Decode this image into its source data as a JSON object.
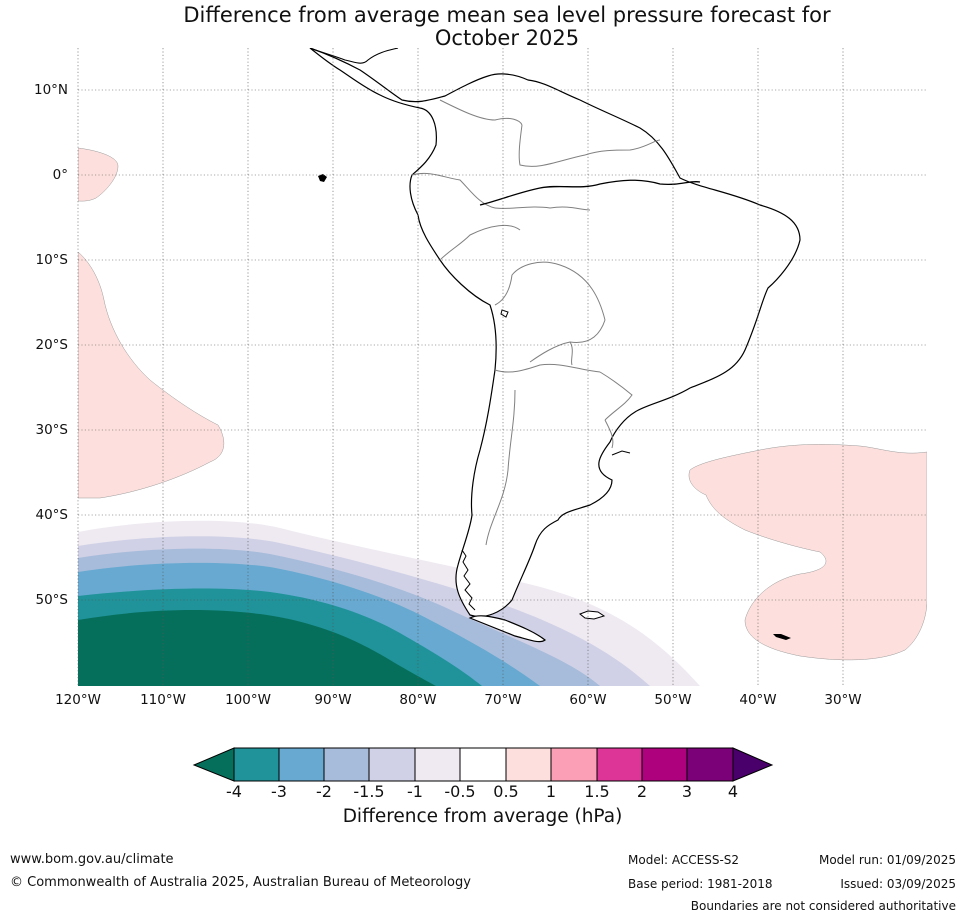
{
  "title": "Difference from average mean sea level pressure forecast for October 2025",
  "title_lines": [
    "Difference from average mean sea level pressure forecast for",
    "October 2025"
  ],
  "map": {
    "lat_labels": [
      "10°N",
      "0°",
      "10°S",
      "20°S",
      "30°S",
      "40°S",
      "50°S"
    ],
    "lon_labels": [
      "120°W",
      "110°W",
      "100°W",
      "90°W",
      "80°W",
      "70°W",
      "60°W",
      "50°W",
      "40°W",
      "30°W"
    ],
    "gridlines": "dotted",
    "colors": {
      "ocean": "#ffffff",
      "land_outline": "#000000",
      "borders": "#808080"
    }
  },
  "colorbar": {
    "label": "Difference from average (hPa)",
    "ticks": [
      "-4",
      "-3",
      "-2",
      "-1.5",
      "-1",
      "-0.5",
      "0.5",
      "1",
      "1.5",
      "2",
      "3",
      "4"
    ],
    "colors": [
      "#066f5b",
      "#1f9399",
      "#67a9d0",
      "#a7bcda",
      "#d0d1e6",
      "#efeaf1",
      "#ffffff",
      "#fde0dd",
      "#fa9fb5",
      "#dd3497",
      "#ae017e",
      "#7a0177",
      "#49006a"
    ]
  },
  "footer": {
    "website": "www.bom.gov.au/climate",
    "copyright": "© Commonwealth of Australia 2025, Australian Bureau of Meteorology",
    "model": "Model: ACCESS-S2",
    "base_period": "Base period: 1981-2018",
    "model_run": "Model run: 01/09/2025",
    "issued": "Issued: 03/09/2025",
    "disclaimer": "Boundaries are not considered authoritative"
  }
}
